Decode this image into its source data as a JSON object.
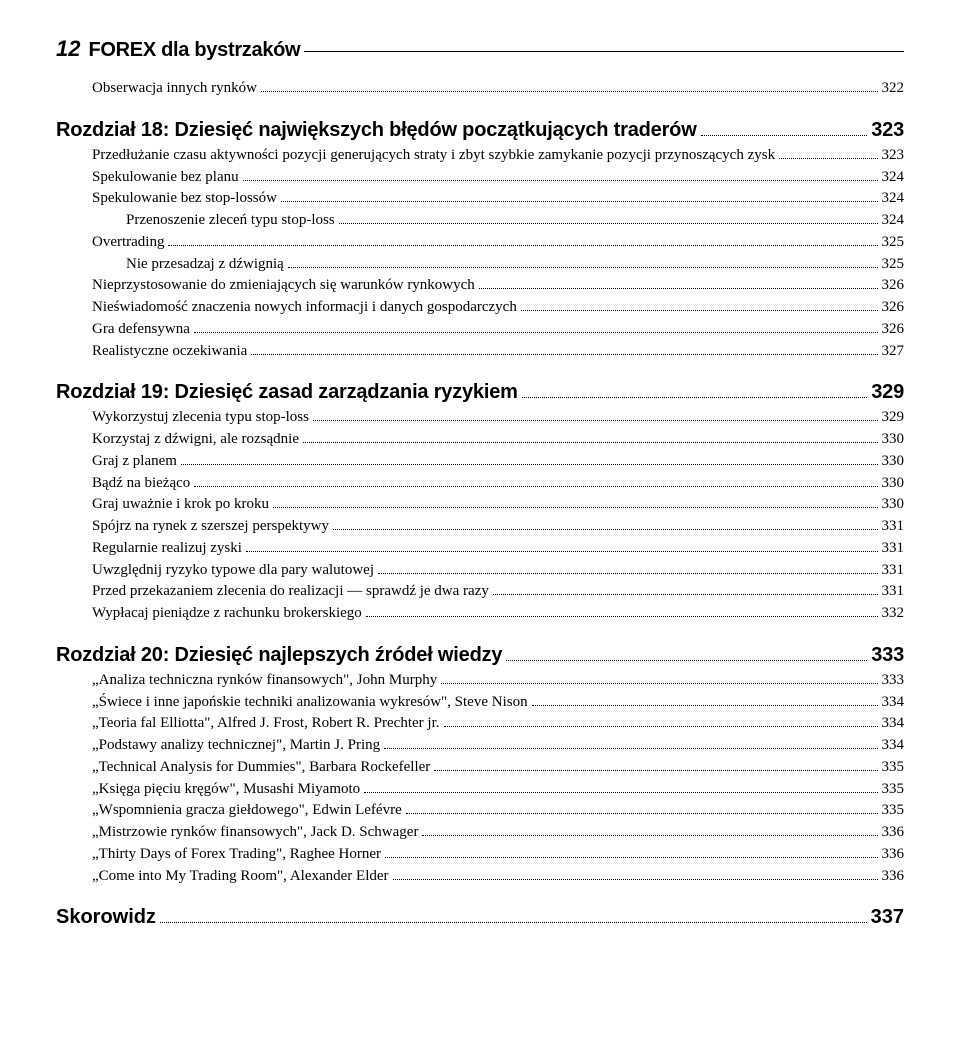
{
  "page_number": "12",
  "running_head": "FOREX dla bystrzaków",
  "sections": [
    {
      "type": "sub",
      "items": [
        {
          "label": "Obserwacja innych rynków",
          "page": "322",
          "indent": 1
        }
      ]
    },
    {
      "type": "head",
      "label": "Rozdział 18: Dziesięć największych błędów początkujących traderów",
      "page": "323",
      "items": [
        {
          "label": "Przedłużanie czasu aktywności pozycji generujących straty i zbyt szybkie zamykanie pozycji przynoszących zysk",
          "page": "323",
          "indent": 1
        },
        {
          "label": "Spekulowanie bez planu",
          "page": "324",
          "indent": 1
        },
        {
          "label": "Spekulowanie bez stop-lossów",
          "page": "324",
          "indent": 1
        },
        {
          "label": "Przenoszenie zleceń typu stop-loss",
          "page": "324",
          "indent": 2
        },
        {
          "label": "Overtrading",
          "page": "325",
          "indent": 1
        },
        {
          "label": "Nie przesadzaj z dźwignią",
          "page": "325",
          "indent": 2
        },
        {
          "label": "Nieprzystosowanie do zmieniających się warunków rynkowych",
          "page": "326",
          "indent": 1
        },
        {
          "label": "Nieświadomość znaczenia nowych informacji i danych gospodarczych",
          "page": "326",
          "indent": 1
        },
        {
          "label": "Gra defensywna",
          "page": "326",
          "indent": 1
        },
        {
          "label": "Realistyczne oczekiwania",
          "page": "327",
          "indent": 1
        }
      ]
    },
    {
      "type": "head",
      "label": "Rozdział 19: Dziesięć zasad zarządzania ryzykiem",
      "page": "329",
      "items": [
        {
          "label": "Wykorzystuj zlecenia typu stop-loss",
          "page": "329",
          "indent": 1
        },
        {
          "label": "Korzystaj z dźwigni, ale rozsądnie",
          "page": "330",
          "indent": 1
        },
        {
          "label": "Graj z planem",
          "page": "330",
          "indent": 1
        },
        {
          "label": "Bądź na bieżąco",
          "page": "330",
          "indent": 1
        },
        {
          "label": "Graj uważnie i krok po kroku",
          "page": "330",
          "indent": 1
        },
        {
          "label": "Spójrz na rynek z szerszej perspektywy",
          "page": "331",
          "indent": 1
        },
        {
          "label": "Regularnie realizuj zyski",
          "page": "331",
          "indent": 1
        },
        {
          "label": "Uwzględnij ryzyko typowe dla pary walutowej",
          "page": "331",
          "indent": 1
        },
        {
          "label": "Przed przekazaniem zlecenia do realizacji — sprawdź je dwa razy",
          "page": "331",
          "indent": 1
        },
        {
          "label": "Wypłacaj pieniądze z rachunku brokerskiego",
          "page": "332",
          "indent": 1
        }
      ]
    },
    {
      "type": "head",
      "label": "Rozdział 20: Dziesięć najlepszych źródeł wiedzy",
      "page": "333",
      "items": [
        {
          "label": "„Analiza techniczna rynków finansowych\", John Murphy",
          "page": "333",
          "indent": 1
        },
        {
          "label": "„Świece i inne japońskie techniki analizowania wykresów\", Steve Nison",
          "page": "334",
          "indent": 1
        },
        {
          "label": "„Teoria fal Elliotta\", Alfred J. Frost, Robert R. Prechter jr.",
          "page": "334",
          "indent": 1
        },
        {
          "label": "„Podstawy analizy technicznej\", Martin J. Pring",
          "page": "334",
          "indent": 1
        },
        {
          "label": "„Technical Analysis for Dummies\", Barbara Rockefeller",
          "page": "335",
          "indent": 1
        },
        {
          "label": "„Księga pięciu kręgów\", Musashi Miyamoto",
          "page": "335",
          "indent": 1
        },
        {
          "label": "„Wspomnienia gracza giełdowego\", Edwin Lefévre",
          "page": "335",
          "indent": 1
        },
        {
          "label": "„Mistrzowie rynków finansowych\", Jack D. Schwager",
          "page": "336",
          "indent": 1
        },
        {
          "label": "„Thirty Days of Forex Trading\", Raghee Horner",
          "page": "336",
          "indent": 1
        },
        {
          "label": "„Come into My Trading Room\", Alexander Elder",
          "page": "336",
          "indent": 1
        }
      ]
    }
  ],
  "skorowidz": {
    "label": "Skorowidz",
    "page": "337"
  }
}
